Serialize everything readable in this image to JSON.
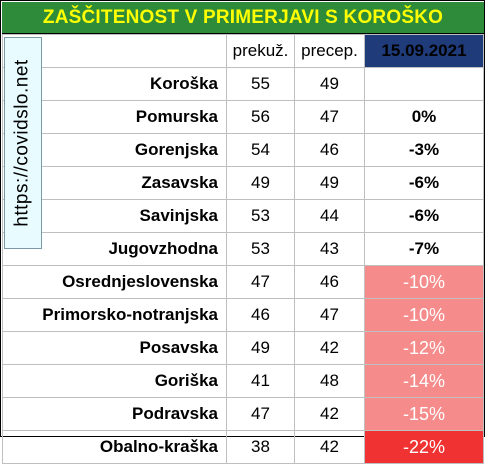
{
  "title": "ZAŠČITENOST V PRIMERJAVI S KOROŠKO",
  "watermark": "https://covidslo.net",
  "header": {
    "col_a": "prekuž.",
    "col_b": "precep.",
    "date": "15.09.2021"
  },
  "rows": [
    {
      "region": "Koroška",
      "prekuz": "55",
      "precep": "49",
      "diff": "",
      "style": "none"
    },
    {
      "region": "Pomurska",
      "prekuz": "56",
      "precep": "47",
      "diff": "0%",
      "style": "none"
    },
    {
      "region": "Gorenjska",
      "prekuz": "54",
      "precep": "46",
      "diff": "-3%",
      "style": "none"
    },
    {
      "region": "Zasavska",
      "prekuz": "49",
      "precep": "49",
      "diff": "-6%",
      "style": "none"
    },
    {
      "region": "Savinjska",
      "prekuz": "53",
      "precep": "44",
      "diff": "-6%",
      "style": "none"
    },
    {
      "region": "Jugovzhodna",
      "prekuz": "53",
      "precep": "43",
      "diff": "-7%",
      "style": "none"
    },
    {
      "region": "Osrednjeslovenska",
      "prekuz": "47",
      "precep": "46",
      "diff": "-10%",
      "style": "mid"
    },
    {
      "region": "Primorsko-notranjska",
      "prekuz": "46",
      "precep": "47",
      "diff": "-10%",
      "style": "mid"
    },
    {
      "region": "Posavska",
      "prekuz": "49",
      "precep": "42",
      "diff": "-12%",
      "style": "mid"
    },
    {
      "region": "Goriška",
      "prekuz": "41",
      "precep": "48",
      "diff": "-14%",
      "style": "mid"
    },
    {
      "region": "Podravska",
      "prekuz": "47",
      "precep": "42",
      "diff": "-15%",
      "style": "mid"
    },
    {
      "region": "Obalno-kraška",
      "prekuz": "38",
      "precep": "42",
      "diff": "-22%",
      "style": "strong"
    }
  ]
}
